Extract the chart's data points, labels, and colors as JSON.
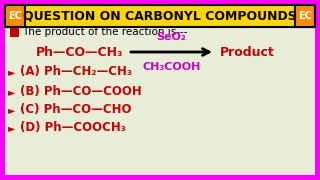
{
  "title": "QUESTION ON CARBONYL COMPOUNDS",
  "title_bg": "#FFD700",
  "title_color": "#000000",
  "bg_color": "#E8EDD8",
  "ec_label": "EC",
  "ec_bg": "#FF8C00",
  "ec_text_color": "#FFFFFF",
  "question": "The product of the reaction is---",
  "question_color": "#000000",
  "checkbox_color": "#CC0000",
  "reagent_line1": "SeO₂",
  "reagent_line2": "CH₃COOH",
  "reagent_color": "#CC00CC",
  "reactant": "Ph—CO—CH₃",
  "reactant_color": "#CC0000",
  "product_label": "Product",
  "product_color": "#CC0000",
  "arrow_color": "#000000",
  "options": [
    {
      "label": "(A)",
      "formula": "Ph—CH₂—CH₃"
    },
    {
      "label": "(B)",
      "formula": "Ph—CO—COOH"
    },
    {
      "label": "(C)",
      "formula": "Ph—CO—CHO"
    },
    {
      "label": "(D)",
      "formula": "Ph—COOCH₃"
    }
  ],
  "option_label_color": "#000000",
  "option_formula_color": "#CC0000",
  "bullet_color": "#CC0000",
  "outer_border_color": "#FF00FF",
  "border_width": 5
}
